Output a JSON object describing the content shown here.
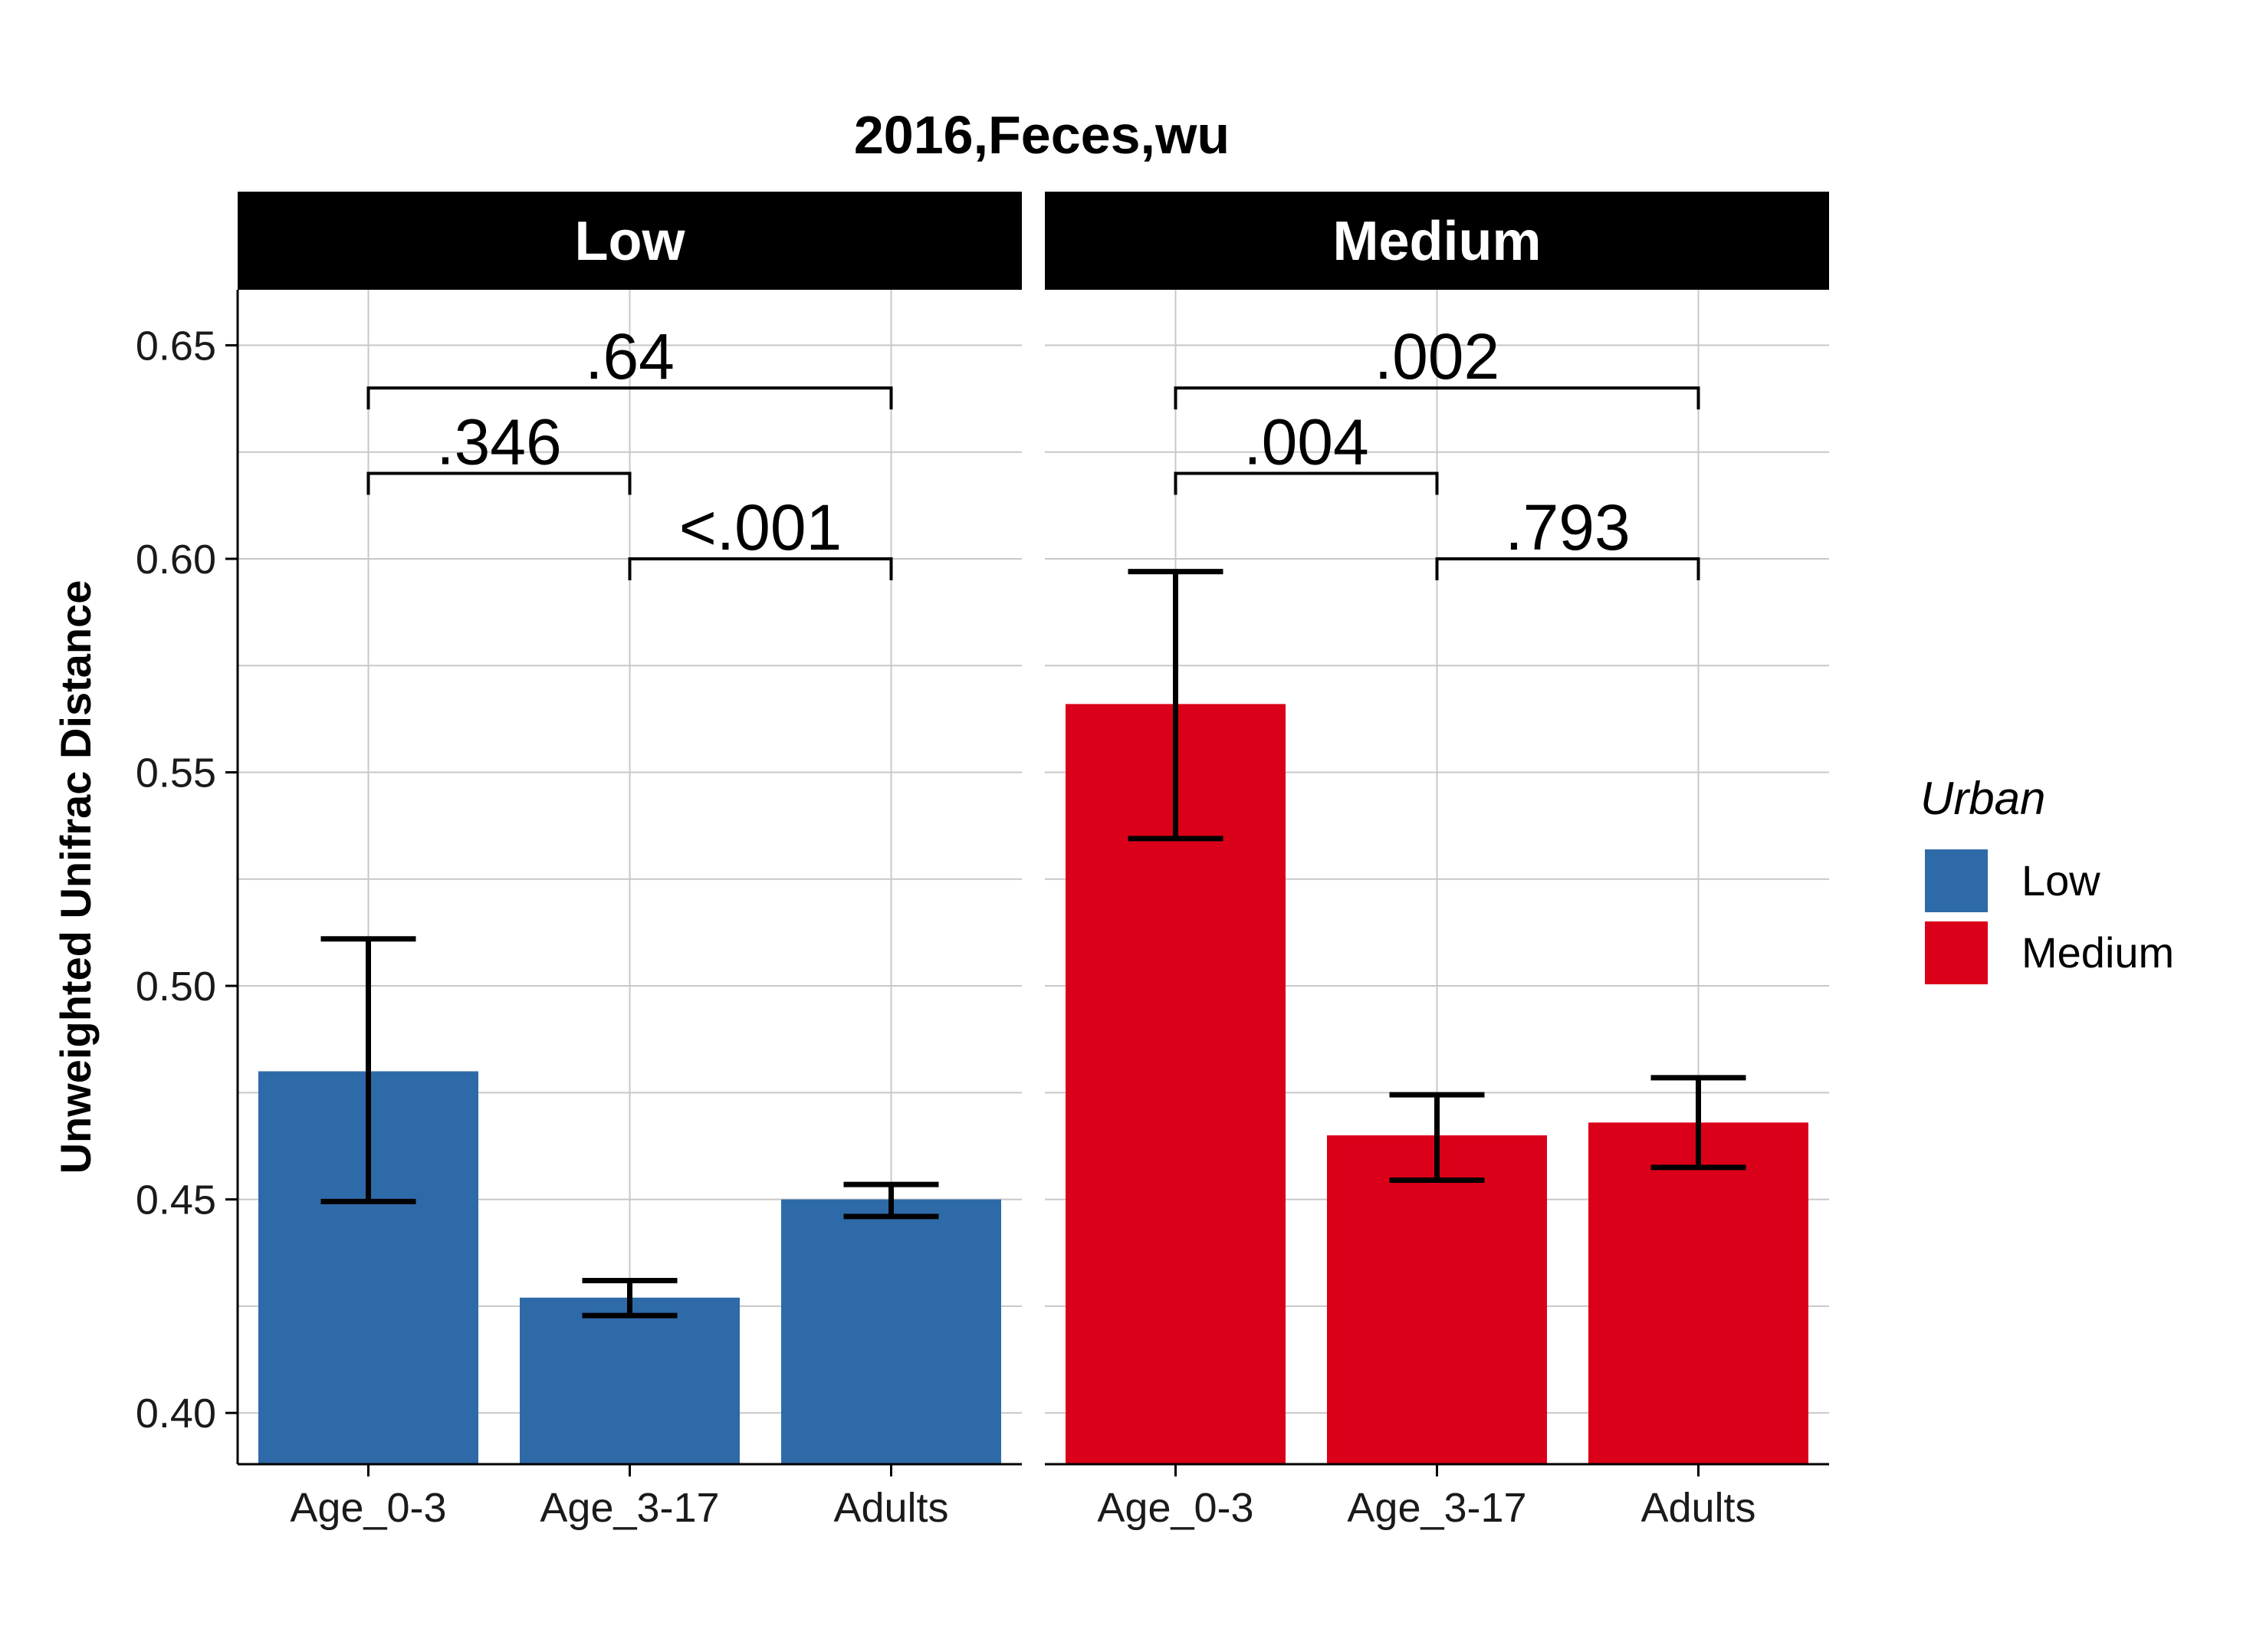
{
  "chart_data": {
    "type": "bar",
    "title": "2016,Feces,wu",
    "ylabel": "Unweighted Unifrac Distance",
    "xlabel": "",
    "ylim": [
      0.388,
      0.663
    ],
    "yticks": [
      0.4,
      0.45,
      0.5,
      0.55,
      0.6,
      0.65
    ],
    "ytick_labels": [
      "0.40",
      "0.45",
      "0.50",
      "0.55",
      "0.60",
      "0.65"
    ],
    "grid": true,
    "categories": [
      "Age_0-3",
      "Age_3-17",
      "Adults"
    ],
    "legend": {
      "title": "Urban",
      "position": "right",
      "entries": [
        {
          "label": "Low",
          "color": "#2e6aa8"
        },
        {
          "label": "Medium",
          "color": "#db0019"
        }
      ]
    },
    "panels": [
      {
        "strip_label": "Low",
        "color": "#2e6aa8",
        "values": [
          0.48,
          0.427,
          0.45
        ],
        "error_low": [
          0.4495,
          0.4228,
          0.446
        ],
        "error_high": [
          0.511,
          0.431,
          0.4535
        ],
        "comparisons": [
          {
            "from": "Age_0-3",
            "to": "Adults",
            "label": ".64",
            "y": 0.64
          },
          {
            "from": "Age_0-3",
            "to": "Age_3-17",
            "label": ".346",
            "y": 0.62
          },
          {
            "from": "Age_3-17",
            "to": "Adults",
            "label": "<.001",
            "y": 0.6
          }
        ]
      },
      {
        "strip_label": "Medium",
        "color": "#db0019",
        "values": [
          0.566,
          0.465,
          0.468
        ],
        "error_low": [
          0.5345,
          0.4545,
          0.4575
        ],
        "error_high": [
          0.597,
          0.4745,
          0.4785
        ],
        "comparisons": [
          {
            "from": "Age_0-3",
            "to": "Adults",
            "label": ".002",
            "y": 0.64
          },
          {
            "from": "Age_0-3",
            "to": "Age_3-17",
            "label": ".004",
            "y": 0.62
          },
          {
            "from": "Age_3-17",
            "to": "Adults",
            "label": ".793",
            "y": 0.6
          }
        ]
      }
    ]
  }
}
